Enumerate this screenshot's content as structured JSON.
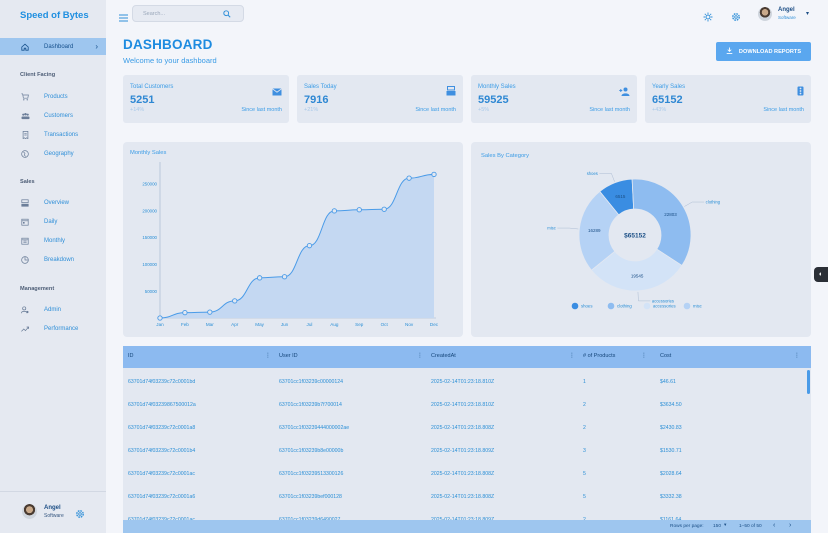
{
  "brand": "Speed of Bytes",
  "sidebar": {
    "dashboard": "Dashboard",
    "sections": [
      {
        "title": "Client Facing",
        "items": [
          "Products",
          "Customers",
          "Transactions",
          "Geography"
        ]
      },
      {
        "title": "Sales",
        "items": [
          "Overview",
          "Daily",
          "Monthly",
          "Breakdown"
        ]
      },
      {
        "title": "Management",
        "items": [
          "Admin",
          "Performance"
        ]
      }
    ],
    "user": {
      "name": "Angel",
      "role": "Software"
    }
  },
  "topbar": {
    "search_placeholder": "Search...",
    "user": {
      "name": "Angel",
      "role": "Software"
    }
  },
  "header": {
    "title": "DASHBOARD",
    "subtitle": "Welcome to your dashboard",
    "download_label": "DOWNLOAD REPORTS"
  },
  "stats": [
    {
      "label": "Total Customers",
      "value": "5251",
      "inc": "+14%",
      "since": "Since last month",
      "icon": "mail-icon"
    },
    {
      "label": "Sales Today",
      "value": "7916",
      "inc": "+21%",
      "since": "Since last month",
      "icon": "point-of-sale-icon"
    },
    {
      "label": "Monthly Sales",
      "value": "59525",
      "inc": "+5%",
      "since": "Since last month",
      "icon": "person-add-icon"
    },
    {
      "label": "Yearly Sales",
      "value": "65152",
      "inc": "+43%",
      "since": "Since last month",
      "icon": "traffic-icon"
    }
  ],
  "chart_data": [
    {
      "type": "area",
      "title": "Monthly Sales",
      "categories": [
        "Jan",
        "Feb",
        "Mar",
        "Apr",
        "May",
        "Jun",
        "Jul",
        "Aug",
        "Sep",
        "Oct",
        "Nov",
        "Dec"
      ],
      "values": [
        0,
        10000,
        11000,
        32000,
        75000,
        77000,
        135000,
        200000,
        202000,
        203000,
        261000,
        268000
      ],
      "yticks": [
        "50000",
        "100000",
        "150000",
        "200000",
        "250000"
      ],
      "ylim": [
        0,
        280000
      ],
      "color": "#4a9be8"
    },
    {
      "type": "pie",
      "title": "Sales By Category",
      "total_label": "$65152",
      "slices": [
        {
          "name": "shoes",
          "value": 6515,
          "label": "6515",
          "color": "#3a8de2"
        },
        {
          "name": "clothing",
          "value": 22803,
          "label": "22803",
          "color": "#8ebcf0"
        },
        {
          "name": "accessories",
          "value": 19545,
          "label": "19545",
          "color": "#d3e3f7"
        },
        {
          "name": "misc",
          "value": 16289,
          "label": "16289",
          "color": "#b5d2f5"
        }
      ],
      "legend": [
        "shoes",
        "clothing",
        "accessories",
        "misc"
      ]
    }
  ],
  "table": {
    "headers": [
      "ID",
      "User ID",
      "CreatedAt",
      "# of Products",
      "Cost"
    ],
    "rows": [
      [
        "63701d74f03239c72c0001bd",
        "63701cc1f03239c00000124",
        "2025-02-14T01:23:18.810Z",
        "1",
        "$46.61"
      ],
      [
        "63701d74f03239867500012a",
        "63701cc1f03239b7f700014",
        "2025-02-14T01:23:18.810Z",
        "2",
        "$3634.50"
      ],
      [
        "63701d74f03239c72c0001a8",
        "63701cc1f03239444000002ae",
        "2025-02-14T01:23:18.808Z",
        "2",
        "$2430.83"
      ],
      [
        "63701d74f03239c72c0001b4",
        "63701cc1f03239b8e00000b",
        "2025-02-14T01:23:18.809Z",
        "3",
        "$1530.71"
      ],
      [
        "63701d74f03239c72c0001ac",
        "63701cc1f03239513300126",
        "2025-02-14T01:23:18.808Z",
        "5",
        "$2028.64"
      ],
      [
        "63701d74f03239c72c0001a6",
        "63701cc1f03239bef000128",
        "2025-02-14T01:23:18.808Z",
        "5",
        "$3332.38"
      ],
      [
        "63701d74f03239c72c0001ac",
        "63701cc1f03239d6490027",
        "2025-02-14T01:23:18.809Z",
        "2",
        "$1161.64"
      ]
    ],
    "footer": {
      "rows_per_page": "Rows per page:",
      "per_page_value": "150",
      "range": "1–50 of 50"
    }
  }
}
